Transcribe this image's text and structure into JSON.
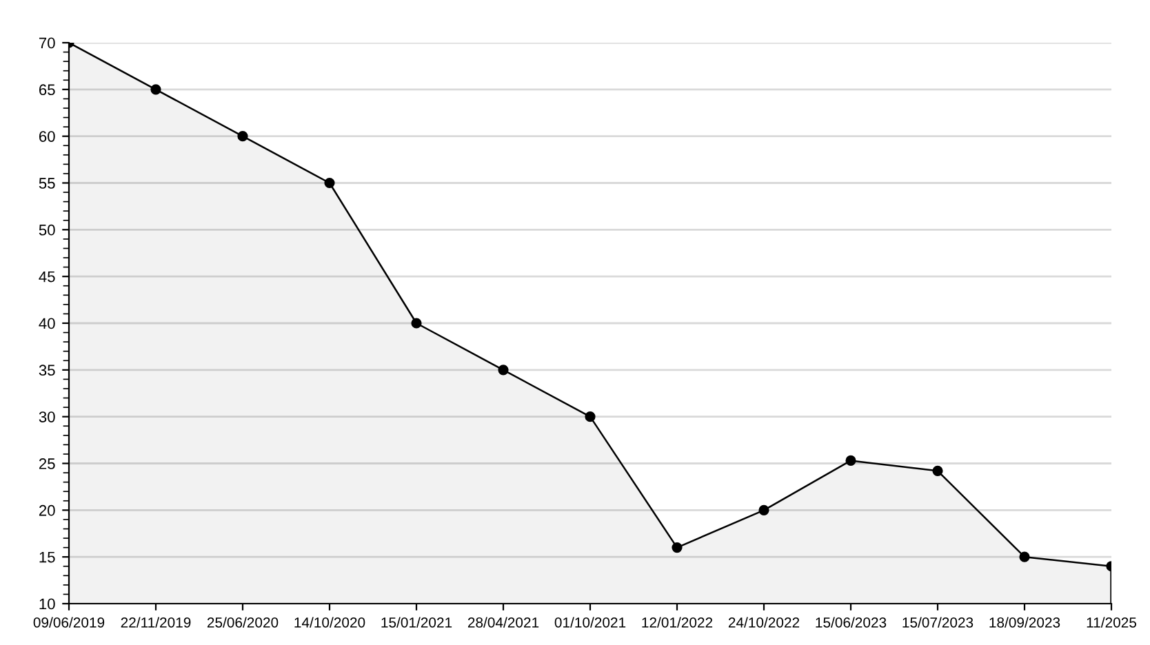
{
  "chart_data": {
    "type": "area",
    "categories": [
      "09/06/2019",
      "22/11/2019",
      "25/06/2020",
      "14/10/2020",
      "15/01/2021",
      "28/04/2021",
      "01/10/2021",
      "12/01/2022",
      "24/10/2022",
      "15/06/2023",
      "15/07/2023",
      "18/09/2023",
      "11/2025"
    ],
    "series": [
      {
        "color": "#000000",
        "values": [
          70,
          65,
          60,
          55,
          40,
          35,
          30,
          16,
          20,
          25.3,
          24.2,
          15,
          14
        ]
      }
    ],
    "ylim": [
      10,
      70
    ],
    "yticks": [
      10,
      15,
      20,
      25,
      30,
      35,
      40,
      45,
      50,
      55,
      60,
      65,
      70
    ],
    "grid": "y",
    "marker": "circle",
    "line_style": "solid",
    "legend": false
  }
}
